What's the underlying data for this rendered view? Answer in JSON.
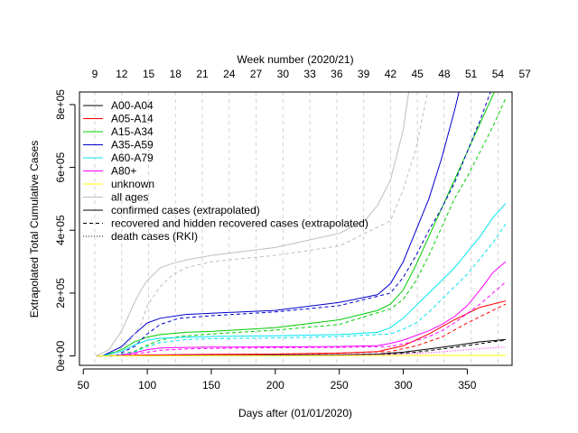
{
  "chart_data": {
    "type": "line",
    "xlabel": "Days after (01/01/2020)",
    "ylabel": "Extrapolated Total Cumulative Cases",
    "top_axis_label": "Week number (2020/21)",
    "xlim": [
      47,
      385
    ],
    "ylim": [
      -30000,
      840000
    ],
    "x_ticks": [
      50,
      100,
      150,
      200,
      250,
      300,
      350
    ],
    "y_ticks": [
      {
        "value": 0,
        "label": "0e+00"
      },
      {
        "value": 200000,
        "label": "2e+05"
      },
      {
        "value": 400000,
        "label": "4e+05"
      },
      {
        "value": 600000,
        "label": "6e+05"
      },
      {
        "value": 800000,
        "label": "8e+05"
      }
    ],
    "week_ticks": [
      {
        "day": 59,
        "label": "9"
      },
      {
        "day": 80,
        "label": "12"
      },
      {
        "day": 101,
        "label": "15"
      },
      {
        "day": 122,
        "label": "18"
      },
      {
        "day": 143,
        "label": "21"
      },
      {
        "day": 164,
        "label": "24"
      },
      {
        "day": 185,
        "label": "27"
      },
      {
        "day": 206,
        "label": "30"
      },
      {
        "day": 227,
        "label": "33"
      },
      {
        "day": 248,
        "label": "36"
      },
      {
        "day": 269,
        "label": "39"
      },
      {
        "day": 290,
        "label": "42"
      },
      {
        "day": 311,
        "label": "45"
      },
      {
        "day": 332,
        "label": "48"
      },
      {
        "day": 353,
        "label": "51"
      },
      {
        "day": 374,
        "label": "54"
      },
      {
        "day": 395,
        "label": "57"
      }
    ],
    "grid": true,
    "legend_position": "top-left",
    "legend": [
      {
        "label": "A00-A04",
        "color": "#000000",
        "dash": "solid"
      },
      {
        "label": "A05-A14",
        "color": "#ff0000",
        "dash": "solid"
      },
      {
        "label": "A15-A34",
        "color": "#00cd00",
        "dash": "solid"
      },
      {
        "label": "A35-A59",
        "color": "#0000cd",
        "dash": "solid"
      },
      {
        "label": "A60-A79",
        "color": "#00e5ee",
        "dash": "solid"
      },
      {
        "label": "A80+",
        "color": "#ff00ff",
        "dash": "solid"
      },
      {
        "label": "unknown",
        "color": "#ffff00",
        "dash": "solid"
      },
      {
        "label": "all ages",
        "color": "#bebebe",
        "dash": "solid"
      },
      {
        "label": "confirmed cases (extrapolated)",
        "color": "#000000",
        "dash": "solid"
      },
      {
        "label": "recovered and hidden recovered cases (extrapolated)",
        "color": "#000000",
        "dash": "dashed"
      },
      {
        "label": "death cases (RKI)",
        "color": "#000000",
        "dash": "dotted"
      }
    ],
    "series": [
      {
        "name": "A00-A04",
        "color": "#000000",
        "dash": "solid",
        "x": [
          60,
          100,
          150,
          200,
          250,
          280,
          300,
          320,
          340,
          360,
          380
        ],
        "y": [
          0,
          1000,
          2000,
          3000,
          4000,
          6000,
          12000,
          22000,
          33000,
          45000,
          52000
        ]
      },
      {
        "name": "A00-A04",
        "color": "#000000",
        "dash": "dashed",
        "x": [
          70,
          110,
          160,
          200,
          250,
          290,
          310,
          330,
          350,
          370,
          380
        ],
        "y": [
          0,
          1000,
          2000,
          3000,
          4000,
          6000,
          12000,
          22000,
          33000,
          45000,
          50000
        ]
      },
      {
        "name": "A05-A14",
        "color": "#ff0000",
        "dash": "solid",
        "x": [
          60,
          100,
          150,
          200,
          250,
          280,
          300,
          320,
          340,
          360,
          380
        ],
        "y": [
          0,
          3000,
          5000,
          6000,
          9000,
          14000,
          32000,
          70000,
          115000,
          155000,
          175000
        ]
      },
      {
        "name": "A05-A14",
        "color": "#ff0000",
        "dash": "dashed",
        "x": [
          70,
          110,
          160,
          200,
          250,
          290,
          310,
          330,
          350,
          370,
          380
        ],
        "y": [
          0,
          3000,
          5000,
          6000,
          9000,
          14000,
          32000,
          60000,
          105000,
          145000,
          165000
        ]
      },
      {
        "name": "A15-A34",
        "color": "#00cd00",
        "dash": "solid",
        "x": [
          65,
          80,
          90,
          100,
          110,
          130,
          150,
          200,
          250,
          280,
          290,
          300,
          310,
          320,
          330,
          340,
          350,
          360,
          370,
          380
        ],
        "y": [
          0,
          20000,
          45000,
          60000,
          68000,
          75000,
          78000,
          90000,
          115000,
          145000,
          165000,
          210000,
          290000,
          380000,
          470000,
          560000,
          650000,
          740000,
          830000,
          920000
        ]
      },
      {
        "name": "A15-A34",
        "color": "#00cd00",
        "dash": "dashed",
        "x": [
          75,
          90,
          100,
          110,
          125,
          150,
          200,
          250,
          290,
          300,
          310,
          320,
          330,
          340,
          350,
          360,
          370,
          380
        ],
        "y": [
          0,
          15000,
          35000,
          50000,
          62000,
          70000,
          82000,
          100000,
          150000,
          180000,
          240000,
          320000,
          410000,
          500000,
          570000,
          650000,
          730000,
          820000
        ]
      },
      {
        "name": "A35-A59",
        "color": "#0000cd",
        "dash": "solid",
        "x": [
          65,
          80,
          90,
          100,
          110,
          130,
          150,
          200,
          250,
          280,
          290,
          300,
          310,
          320,
          330,
          340,
          350
        ],
        "y": [
          0,
          30000,
          70000,
          105000,
          120000,
          132000,
          136000,
          145000,
          170000,
          195000,
          230000,
          300000,
          400000,
          500000,
          630000,
          780000,
          950000
        ]
      },
      {
        "name": "A35-A59",
        "color": "#0000cd",
        "dash": "dashed",
        "x": [
          75,
          90,
          100,
          110,
          125,
          150,
          200,
          250,
          290,
          300,
          310,
          320,
          330,
          340,
          350,
          360,
          370
        ],
        "y": [
          0,
          30000,
          70000,
          100000,
          120000,
          128000,
          140000,
          160000,
          200000,
          250000,
          320000,
          400000,
          470000,
          550000,
          650000,
          750000,
          860000
        ]
      },
      {
        "name": "A60-A79",
        "color": "#00e5ee",
        "dash": "solid",
        "x": [
          65,
          80,
          90,
          100,
          110,
          130,
          150,
          200,
          250,
          280,
          290,
          300,
          310,
          320,
          330,
          340,
          350,
          360,
          370,
          380
        ],
        "y": [
          0,
          15000,
          35000,
          50000,
          56000,
          60000,
          62000,
          64000,
          68000,
          75000,
          90000,
          120000,
          160000,
          200000,
          240000,
          280000,
          330000,
          380000,
          440000,
          485000
        ]
      },
      {
        "name": "A60-A79",
        "color": "#00e5ee",
        "dash": "dashed",
        "x": [
          75,
          90,
          100,
          110,
          130,
          150,
          200,
          250,
          290,
          300,
          310,
          320,
          330,
          340,
          350,
          360,
          370,
          380
        ],
        "y": [
          0,
          12000,
          30000,
          42000,
          52000,
          55000,
          57000,
          62000,
          70000,
          85000,
          105000,
          140000,
          180000,
          220000,
          260000,
          310000,
          360000,
          420000
        ]
      },
      {
        "name": "A80+",
        "color": "#ff00ff",
        "dash": "solid",
        "x": [
          75,
          90,
          100,
          110,
          130,
          150,
          200,
          250,
          280,
          290,
          300,
          310,
          320,
          330,
          340,
          350,
          360,
          370,
          380
        ],
        "y": [
          0,
          10000,
          20000,
          25000,
          27000,
          28000,
          29000,
          30000,
          33000,
          40000,
          50000,
          65000,
          80000,
          100000,
          125000,
          160000,
          210000,
          265000,
          300000
        ]
      },
      {
        "name": "A80+",
        "color": "#ff00ff",
        "dash": "dashed",
        "x": [
          80,
          100,
          110,
          130,
          150,
          200,
          250,
          290,
          300,
          310,
          320,
          330,
          340,
          350,
          360,
          370,
          380
        ],
        "y": [
          0,
          12000,
          18000,
          22000,
          24000,
          26000,
          27000,
          30000,
          38000,
          48000,
          62000,
          80000,
          105000,
          135000,
          165000,
          200000,
          235000
        ]
      },
      {
        "name": "A80+",
        "color": "#ff00ff",
        "dash": "dotted",
        "x": [
          80,
          100,
          130,
          200,
          250,
          290,
          310,
          330,
          350,
          370,
          380
        ],
        "y": [
          0,
          2000,
          3500,
          4000,
          4500,
          5000,
          8000,
          13000,
          20000,
          26000,
          28000
        ]
      },
      {
        "name": "unknown",
        "color": "#ffff00",
        "dash": "solid",
        "x": [
          60,
          100,
          200,
          300,
          380
        ],
        "y": [
          0,
          500,
          1000,
          1500,
          2000
        ]
      },
      {
        "name": "all ages",
        "color": "#bebebe",
        "dash": "solid",
        "x": [
          60,
          70,
          80,
          90,
          95,
          100,
          110,
          120,
          130,
          150,
          200,
          250,
          270,
          280,
          290,
          300,
          305
        ],
        "y": [
          0,
          20000,
          80000,
          170000,
          210000,
          240000,
          280000,
          295000,
          305000,
          320000,
          345000,
          390000,
          430000,
          480000,
          560000,
          720000,
          860000
        ]
      },
      {
        "name": "all ages",
        "color": "#bebebe",
        "dash": "dashed",
        "x": [
          70,
          85,
          95,
          100,
          110,
          120,
          130,
          150,
          200,
          250,
          290,
          300,
          310,
          320
        ],
        "y": [
          0,
          40000,
          100000,
          160000,
          220000,
          260000,
          280000,
          300000,
          320000,
          350000,
          430000,
          530000,
          660000,
          860000
        ]
      }
    ]
  }
}
